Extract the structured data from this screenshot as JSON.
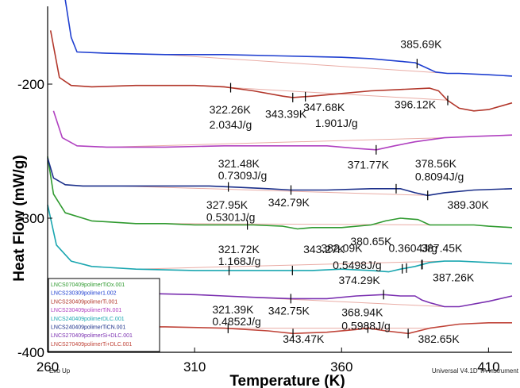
{
  "chart_data": {
    "type": "line",
    "xlabel": "Temperature (K)",
    "ylabel": "Heat Flow (mW/g)",
    "xlim": [
      260,
      418
    ],
    "ylim": [
      -400,
      -142
    ],
    "x_ticks": [
      260,
      310,
      360,
      410
    ],
    "y_ticks": [
      -200,
      -300,
      -400
    ],
    "grid": false,
    "legend_placement": "bottom-left",
    "footer_left": "Exo Up",
    "footer_right": "Universal V4.1D TA Instrument",
    "series": [
      {
        "name": "LNCS070409polimerTiOx.001",
        "color": "#2f9a2f",
        "x": [
          260,
          262,
          266,
          275,
          290,
          300,
          310,
          320,
          330,
          340,
          345,
          350,
          360,
          370,
          375,
          380,
          386,
          390,
          395,
          400,
          405,
          410,
          418
        ],
        "y": [
          -254,
          -282,
          -296,
          -302,
          -304,
          -304,
          -305,
          -305,
          -305,
          -306,
          -308,
          -307,
          -307,
          -305,
          -302,
          -300,
          -301,
          -305,
          -305,
          -305,
          -305,
          -306,
          -307
        ]
      },
      {
        "name": "LNCS230309polimer1.002",
        "color": "#1f3fd0",
        "x": [
          266,
          268,
          270,
          280,
          300,
          320,
          340,
          360,
          370,
          380,
          385,
          388,
          392,
          396,
          400,
          410,
          418
        ],
        "y": [
          -137,
          -165,
          -176,
          -177,
          -178,
          -178,
          -179,
          -180,
          -181,
          -183,
          -184,
          -187,
          -191,
          -192,
          -192,
          -193,
          -194
        ]
      },
      {
        "name": "LNCS230409polimerTi.001",
        "color": "#b2362a",
        "x": [
          261,
          264,
          268,
          275,
          290,
          310,
          320,
          330,
          340,
          343.4,
          350,
          360,
          370,
          380,
          390,
          393,
          396,
          400,
          405,
          410,
          418
        ],
        "y": [
          -160,
          -195,
          -201,
          -202,
          -201,
          -201,
          -202,
          -205,
          -209,
          -210,
          -209,
          -207,
          -205,
          -204,
          -203,
          -205,
          -212,
          -218,
          -220,
          -219,
          -214
        ]
      },
      {
        "name": "LNCS230409polimerTiN.001",
        "color": "#b040c0",
        "x": [
          262,
          265,
          270,
          280,
          300,
          320,
          340,
          355,
          365,
          371.8,
          378,
          385,
          395,
          405,
          418
        ],
        "y": [
          -220,
          -240,
          -246,
          -247,
          -247,
          -246,
          -246,
          -246,
          -248,
          -249,
          -246,
          -243,
          -240,
          -239,
          -238
        ]
      },
      {
        "name": "LNCS240409polimerDLC.001",
        "color": "#1aa6b0",
        "x": [
          260,
          263,
          268,
          275,
          290,
          310,
          330,
          350,
          360,
          370,
          376,
          380,
          385,
          390,
          395,
          400,
          410,
          418
        ],
        "y": [
          -290,
          -320,
          -332,
          -336,
          -338,
          -339,
          -339,
          -339,
          -338,
          -339,
          -340,
          -338,
          -336,
          -333,
          -332,
          -332,
          -333,
          -334
        ]
      },
      {
        "name": "LNCS240409polimerTiCN.001",
        "color": "#1b2f8a",
        "x": [
          260,
          262,
          266,
          272,
          285,
          300,
          315,
          325,
          335,
          342.8,
          355,
          370,
          380,
          385,
          389.3,
          395,
          405,
          418
        ],
        "y": [
          -255,
          -270,
          -275,
          -276,
          -276,
          -276,
          -276,
          -277,
          -278,
          -279,
          -279,
          -278,
          -278,
          -281,
          -283,
          -281,
          -279,
          -278
        ]
      },
      {
        "name": "LNCS270409polimerSi+DLC.001",
        "color": "#7a2fb0",
        "x": [
          262,
          266,
          272,
          290,
          310,
          320,
          330,
          342.8,
          355,
          365,
          374.3,
          380,
          385,
          387.3,
          390,
          395,
          400,
          410,
          418
        ],
        "y": [
          -345,
          -353,
          -355,
          -356,
          -357,
          -358,
          -359,
          -360,
          -360,
          -358,
          -357,
          -358,
          -358,
          -361,
          -363,
          -366,
          -366,
          -362,
          -358
        ]
      },
      {
        "name": "LNCS270409polimerTi+DLC.001",
        "color": "#c0453a",
        "x": [
          266,
          270,
          280,
          300,
          320,
          335,
          343.5,
          355,
          365,
          368.9,
          375,
          382.7,
          390,
          400,
          410,
          418
        ],
        "y": [
          -376,
          -380,
          -381,
          -381,
          -382,
          -384,
          -386,
          -385,
          -383,
          -382,
          -384,
          -386,
          -382,
          -379,
          -378,
          -378
        ]
      }
    ],
    "annotations": [
      {
        "text": "385.69K",
        "x": 380,
        "y": -173
      },
      {
        "text": "322.26K",
        "x": 315,
        "y": -222
      },
      {
        "text": "2.034J/g",
        "x": 315,
        "y": -233
      },
      {
        "text": "343.39K",
        "x": 334,
        "y": -225
      },
      {
        "text": "347.68K",
        "x": 347,
        "y": -220
      },
      {
        "text": "1.901J/g",
        "x": 351,
        "y": -232
      },
      {
        "text": "396.12K",
        "x": 378,
        "y": -218
      },
      {
        "text": "321.48K",
        "x": 318,
        "y": -262
      },
      {
        "text": "0.7309J/g",
        "x": 318,
        "y": -271
      },
      {
        "text": "371.77K",
        "x": 362,
        "y": -263
      },
      {
        "text": "378.56K",
        "x": 385,
        "y": -262
      },
      {
        "text": "0.8094J/g",
        "x": 385,
        "y": -272
      },
      {
        "text": "327.95K",
        "x": 314,
        "y": -293
      },
      {
        "text": "0.5301J/g",
        "x": 314,
        "y": -302
      },
      {
        "text": "342.79K",
        "x": 335,
        "y": -291
      },
      {
        "text": "389.30K",
        "x": 396,
        "y": -293
      },
      {
        "text": "380.65K",
        "x": 363,
        "y": -320
      },
      {
        "text": "382.09K",
        "x": 353,
        "y": -325
      },
      {
        "text": "0.3604J/g",
        "x": 376,
        "y": -325
      },
      {
        "text": "387.45K",
        "x": 387,
        "y": -325
      },
      {
        "text": "321.72K",
        "x": 318,
        "y": -326
      },
      {
        "text": "343.27K",
        "x": 347,
        "y": -326
      },
      {
        "text": "1.168J/g",
        "x": 318,
        "y": -335
      },
      {
        "text": "0.5498J/g",
        "x": 357,
        "y": -338
      },
      {
        "text": "374.29K",
        "x": 359,
        "y": -349
      },
      {
        "text": "387.26K",
        "x": 391,
        "y": -347
      },
      {
        "text": "321.39K",
        "x": 316,
        "y": -371
      },
      {
        "text": "0.4852J/g",
        "x": 316,
        "y": -380
      },
      {
        "text": "342.75K",
        "x": 335,
        "y": -372
      },
      {
        "text": "368.94K",
        "x": 360,
        "y": -373
      },
      {
        "text": "0.5988J/g",
        "x": 360,
        "y": -383
      },
      {
        "text": "343.47K",
        "x": 340,
        "y": -393
      },
      {
        "text": "382.65K",
        "x": 386,
        "y": -393
      }
    ]
  }
}
